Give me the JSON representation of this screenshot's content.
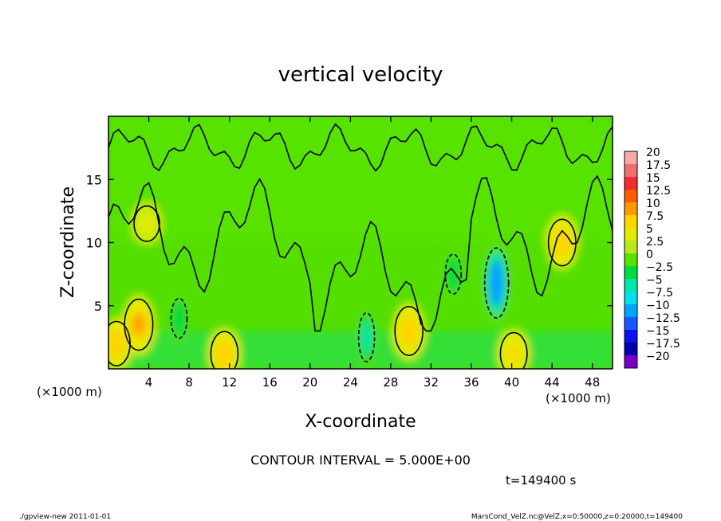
{
  "chart_data": {
    "type": "heatmap",
    "title": "vertical velocity",
    "xlabel": "X-coordinate",
    "ylabel": "Z-coordinate",
    "x_unit_label": "(×1000 m)",
    "y_unit_label": "(×1000 m)",
    "xlim": [
      0,
      50
    ],
    "ylim": [
      0,
      20
    ],
    "x_ticks": [
      4,
      8,
      12,
      16,
      20,
      24,
      28,
      32,
      36,
      40,
      44,
      48
    ],
    "y_ticks": [
      5,
      10,
      15
    ],
    "contour_interval_text": "CONTOUR INTERVAL = 5.000E+00",
    "time_text": "t=149400 s",
    "colorbar": {
      "levels": [
        20,
        17.5,
        15,
        12.5,
        10,
        7.5,
        5,
        2.5,
        0,
        -2.5,
        -5,
        -7.5,
        -10,
        -12.5,
        -15,
        -17.5,
        -20
      ],
      "labels": [
        "20",
        "17.5",
        "15",
        "12.5",
        "10",
        "7.5",
        "5",
        "2.5",
        "0",
        "−2.5",
        "−5",
        "−7.5",
        "−10",
        "−12.5",
        "−15",
        "−17.5",
        "−20"
      ],
      "colors": [
        "#f9a7a7",
        "#f46d6d",
        "#f02c2c",
        "#ff5a00",
        "#ff9a00",
        "#ffd400",
        "#e1ec00",
        "#b7e81e",
        "#58e200",
        "#00db3e",
        "#00e5a8",
        "#00e0ee",
        "#00a4ff",
        "#1a58ff",
        "#1010ee",
        "#0000b0",
        "#7a00c8"
      ]
    },
    "features": [
      {
        "x": 3.0,
        "z": 3.5,
        "value": 7.5,
        "kind": "updraft"
      },
      {
        "x": 0.8,
        "z": 2.0,
        "value": 6,
        "kind": "updraft"
      },
      {
        "x": 11.5,
        "z": 1.2,
        "value": 6,
        "kind": "updraft"
      },
      {
        "x": 29.8,
        "z": 3.0,
        "value": 7,
        "kind": "updraft"
      },
      {
        "x": 40.2,
        "z": 1.2,
        "value": 5.5,
        "kind": "updraft"
      },
      {
        "x": 45.0,
        "z": 10.0,
        "value": 6.5,
        "kind": "updraft"
      },
      {
        "x": 3.8,
        "z": 11.5,
        "value": 4,
        "kind": "updraft"
      },
      {
        "x": 38.5,
        "z": 6.8,
        "value": -12,
        "kind": "downdraft"
      },
      {
        "x": 25.6,
        "z": 2.5,
        "value": -7,
        "kind": "downdraft"
      },
      {
        "x": 7.0,
        "z": 4.0,
        "value": -5,
        "kind": "downdraft"
      },
      {
        "x": 34.2,
        "z": 7.5,
        "value": -5,
        "kind": "downdraft"
      }
    ]
  },
  "footer": {
    "left": "./gpview-new  2011-01-01",
    "right": "MarsCond_VelZ.nc@VelZ,x=0:50000,z=0:20000,t=149400"
  }
}
